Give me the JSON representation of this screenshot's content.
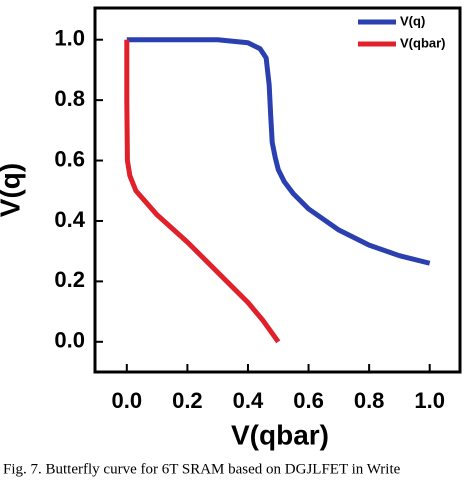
{
  "chart_data": {
    "type": "line",
    "caption": "Fig. 7.  Butterfly curve for 6T SRAM based on DGJLFET in Write",
    "x_label": "V(qbar)",
    "y_label": "V(q)",
    "series": [
      {
        "name": "V(q)",
        "color": "#2a3fb0",
        "x": [
          0,
          0.1,
          0.2,
          0.3,
          0.35,
          0.4,
          0.44,
          0.46,
          0.47,
          0.475,
          0.48,
          0.49,
          0.5,
          0.52,
          0.55,
          0.6,
          0.7,
          0.8,
          0.9,
          1.0
        ],
        "values": [
          1.0,
          1.0,
          1.0,
          1.0,
          0.995,
          0.99,
          0.97,
          0.94,
          0.85,
          0.75,
          0.66,
          0.61,
          0.57,
          0.53,
          0.49,
          0.44,
          0.37,
          0.32,
          0.285,
          0.26
        ]
      },
      {
        "name": "V(qbar)",
        "color": "#e0202a",
        "x": [
          0,
          0,
          0.002,
          0.01,
          0.03,
          0.1,
          0.2,
          0.3,
          0.4,
          0.45,
          0.5
        ],
        "values": [
          1.0,
          0.8,
          0.6,
          0.55,
          0.5,
          0.42,
          0.33,
          0.23,
          0.13,
          0.07,
          0.0
        ]
      }
    ],
    "xlim": [
      -0.105,
      1.1
    ],
    "ylim": [
      -0.1,
      1.105
    ],
    "xticks": [
      {
        "value": 0,
        "label": "0.0"
      },
      0.2,
      0.4,
      0.6,
      0.8,
      {
        "value": 1,
        "label": "1.0"
      }
    ],
    "yticks": [
      {
        "value": 0,
        "label": "0.0"
      },
      0.2,
      0.4,
      0.6,
      0.8,
      {
        "value": 1,
        "label": "1.0"
      }
    ],
    "legend": "upper right"
  }
}
